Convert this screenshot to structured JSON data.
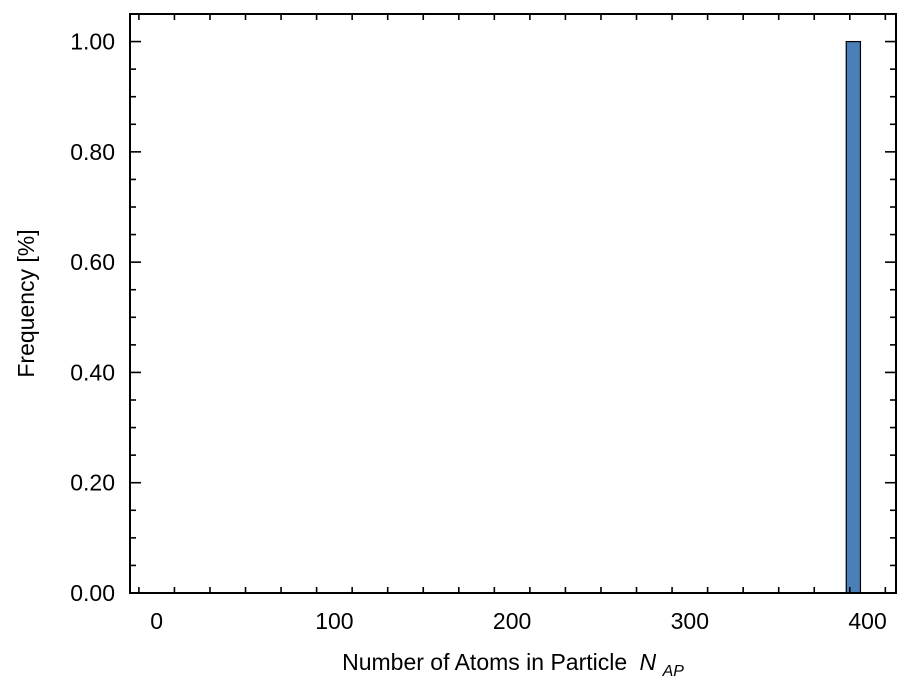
{
  "chart_data": {
    "type": "bar",
    "title": "",
    "xlabel": "Number of Atoms in Particle",
    "xlabel_symbol": "N",
    "xlabel_subscript": "AP",
    "ylabel": "Frequency [%]",
    "xlim": [
      -15,
      416
    ],
    "ylim": [
      0,
      1.05
    ],
    "xticks": [
      0,
      100,
      200,
      300,
      400
    ],
    "xtick_labels": [
      "0",
      "100",
      "200",
      "300",
      "400"
    ],
    "yticks": [
      0,
      0.2,
      0.4,
      0.6,
      0.8,
      1.0
    ],
    "ytick_labels": [
      "0.00",
      "0.20",
      "0.40",
      "0.60",
      "0.80",
      "1.00"
    ],
    "bars": [
      {
        "x_start": 388,
        "x_end": 396,
        "value": 1.0
      }
    ],
    "bar_color": "#4a7fb8",
    "grid": false,
    "legend": "none"
  }
}
